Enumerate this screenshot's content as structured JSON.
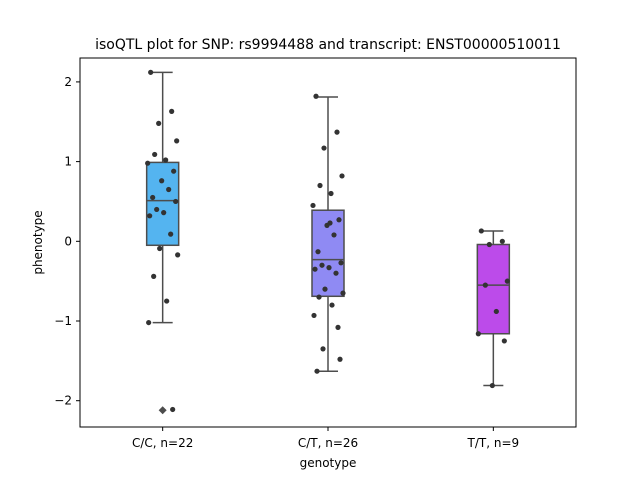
{
  "chart_data": {
    "type": "box",
    "title": "isoQTL plot for SNP: rs9994488 and transcript: ENST00000510011",
    "xlabel": "genotype",
    "ylabel": "phenotype",
    "ylim": [
      -2.33,
      2.3
    ],
    "yticks": [
      2,
      1,
      0,
      -1,
      -2
    ],
    "ytick_labels": [
      "2",
      "1",
      "0",
      "−1",
      "−2"
    ],
    "grid": false,
    "categories": [
      "C/C, n=22",
      "C/T, n=26",
      "T/T, n=9"
    ],
    "box_colors": [
      "#54b4f0",
      "#8f8af3",
      "#bc4bea"
    ],
    "groups": [
      {
        "label": "C/C, n=22",
        "color": "#54b4f0",
        "whisker_low": -1.02,
        "q1": -0.05,
        "median": 0.51,
        "q3": 0.99,
        "whisker_high": 2.12,
        "outliers": [
          -2.12
        ],
        "points": [
          2.12,
          1.63,
          1.48,
          1.26,
          1.09,
          1.02,
          0.98,
          0.88,
          0.76,
          0.65,
          0.55,
          0.5,
          0.4,
          0.36,
          0.32,
          0.09,
          -0.09,
          -0.17,
          -0.44,
          -0.75,
          -1.02,
          -2.11
        ]
      },
      {
        "label": "C/T, n=26",
        "color": "#8f8af3",
        "whisker_low": -1.63,
        "q1": -0.69,
        "median": -0.23,
        "q3": 0.39,
        "whisker_high": 1.81,
        "outliers": [],
        "points": [
          1.82,
          1.37,
          1.17,
          0.82,
          0.7,
          0.6,
          0.45,
          0.27,
          0.2,
          0.08,
          -0.13,
          -0.27,
          -0.3,
          -0.33,
          -0.35,
          -0.4,
          -0.6,
          -0.65,
          -0.7,
          -0.8,
          -0.93,
          -1.08,
          -1.35,
          -1.48,
          -1.63,
          0.23
        ]
      },
      {
        "label": "T/T, n=9",
        "color": "#bc4bea",
        "whisker_low": -1.81,
        "q1": -1.16,
        "median": -0.55,
        "q3": -0.04,
        "whisker_high": 0.13,
        "outliers": [],
        "points": [
          0.13,
          0.0,
          -0.04,
          -0.5,
          -0.55,
          -0.88,
          -1.16,
          -1.25,
          -1.81
        ]
      }
    ]
  }
}
